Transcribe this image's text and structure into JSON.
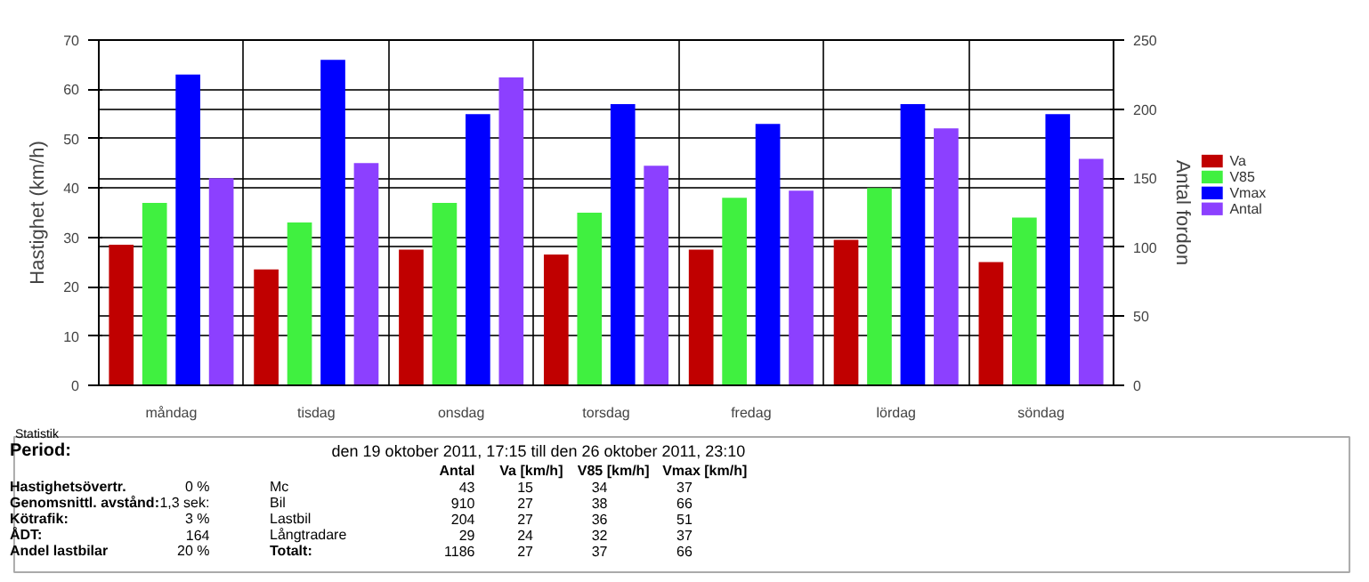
{
  "chart_data": {
    "type": "bar",
    "ylabel": "Hastighet (km/h)",
    "y2label": "Antal fordon",
    "categories": [
      "måndag",
      "tisdag",
      "onsdag",
      "torsdag",
      "fredag",
      "lördag",
      "söndag"
    ],
    "series": [
      {
        "name": "Va",
        "color": "#c00000",
        "values": [
          28.5,
          23.5,
          27.5,
          26.5,
          27.5,
          29.5,
          25
        ]
      },
      {
        "name": "V85",
        "color": "#40f040",
        "values": [
          37,
          33,
          37,
          35,
          38,
          40,
          34
        ]
      },
      {
        "name": "Vmax",
        "color": "#0000ff",
        "values": [
          63,
          66,
          55,
          57,
          53,
          57,
          55
        ]
      },
      {
        "name": "Antal",
        "color": "#8c40ff",
        "axis": "y2",
        "values": [
          150,
          161,
          223,
          159,
          141,
          186,
          164
        ]
      }
    ],
    "ylim": [
      0,
      70
    ],
    "yticks": [
      0,
      10,
      20,
      30,
      40,
      50,
      60,
      70
    ],
    "y2lim": [
      0,
      250
    ],
    "y2ticks": [
      0,
      50,
      100,
      150,
      200,
      250
    ],
    "grid": true,
    "legend": "right",
    "annotations": [
      "Statistik",
      "Period:",
      "den 19 oktober 2011, 17:15 till den 26 oktober 2011, 23:10",
      "Antal",
      "Va [km/h]",
      "V85 [km/h]",
      "Vmax [km/h]",
      "Hastighetsövertr.",
      "0 %",
      "Mc",
      "43",
      "15",
      "34",
      "37",
      "Genomsnittl. avstånd:",
      "1,3 sek:",
      "Bil",
      "910",
      "27",
      "38",
      "66",
      "Kötrafik:",
      "3 %",
      "Lastbil",
      "204",
      "27",
      "36",
      "51",
      "ÅDT:",
      "164",
      "Långtradare",
      "29",
      "24",
      "32",
      "37",
      "Andel lastbilar",
      "20 %",
      "Totalt:",
      "1186",
      "27",
      "37",
      "66"
    ]
  }
}
